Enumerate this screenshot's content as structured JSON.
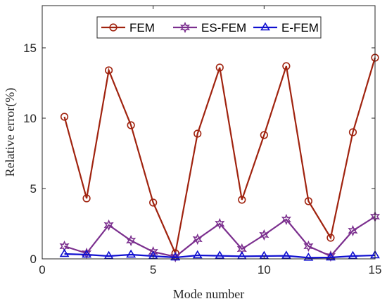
{
  "chart_data": {
    "type": "line",
    "xlabel": "Mode number",
    "ylabel": "Relative error(%)",
    "xlim": [
      0,
      15
    ],
    "ylim": [
      0,
      18
    ],
    "xticks": [
      0,
      5,
      10,
      15
    ],
    "yticks": [
      0,
      5,
      10,
      15
    ],
    "grid": false,
    "legend_position": "top",
    "x": [
      1,
      2,
      3,
      4,
      5,
      6,
      7,
      8,
      9,
      10,
      11,
      12,
      13,
      14,
      15
    ],
    "series": [
      {
        "name": "FEM",
        "marker": "circle",
        "color": "#A0230F",
        "values": [
          10.1,
          4.3,
          13.4,
          9.5,
          4.0,
          0.4,
          8.9,
          13.6,
          4.2,
          8.8,
          13.7,
          4.1,
          1.5,
          9.0,
          14.3
        ]
      },
      {
        "name": "ES-FEM",
        "marker": "hexagram",
        "color": "#7B2F8E",
        "values": [
          0.9,
          0.4,
          2.4,
          1.3,
          0.5,
          0.15,
          1.4,
          2.5,
          0.7,
          1.7,
          2.8,
          0.9,
          0.2,
          2.0,
          3.0
        ]
      },
      {
        "name": "E-FEM",
        "marker": "triangle",
        "color": "#1010D0",
        "values": [
          0.35,
          0.3,
          0.2,
          0.3,
          0.2,
          0.1,
          0.25,
          0.22,
          0.18,
          0.2,
          0.22,
          0.08,
          0.1,
          0.2,
          0.25
        ]
      }
    ]
  }
}
